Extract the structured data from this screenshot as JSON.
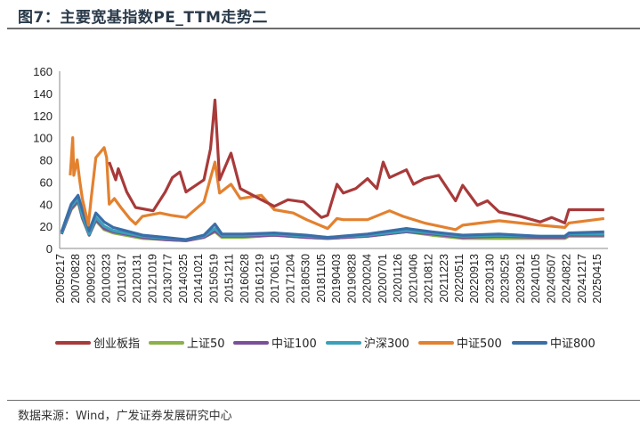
{
  "header": {
    "title": "图7：主要宽基指数PE_TTM走势二"
  },
  "footer": {
    "source": "数据来源：Wind，广发证券发展研究中心"
  },
  "chart_data": {
    "type": "line",
    "title": "",
    "xlabel": "",
    "ylabel": "",
    "ylim": [
      0,
      160
    ],
    "yticks": [
      0,
      20,
      40,
      60,
      80,
      100,
      120,
      140,
      160
    ],
    "grid": false,
    "legend_position": "bottom",
    "x_tick_labels": [
      "20050217",
      "20070828",
      "20090223",
      "20100323",
      "20110317",
      "20120131",
      "20121019",
      "20130717",
      "20140325",
      "20141021",
      "20150519",
      "20151211",
      "20160628",
      "20161219",
      "20170615",
      "20171204",
      "20180530",
      "20181105",
      "20190403",
      "20190828",
      "20200204",
      "20200701",
      "20201126",
      "20210406",
      "20210812",
      "20211223",
      "20220511",
      "20220913",
      "20230130",
      "20230525",
      "20230912",
      "20240105",
      "20240507",
      "20240822",
      "20241217",
      "20250415"
    ],
    "series": [
      {
        "name": "创业板指",
        "color": "#a83a3a",
        "points": [
          [
            "2010-06",
            78
          ],
          [
            "2010-11",
            62
          ],
          [
            "2011-01",
            72
          ],
          [
            "2011-07",
            51
          ],
          [
            "2012-01",
            37
          ],
          [
            "2012-11",
            34
          ],
          [
            "2013-06",
            51
          ],
          [
            "2013-10",
            64
          ],
          [
            "2014-02",
            69
          ],
          [
            "2014-05",
            51
          ],
          [
            "2015-01",
            62
          ],
          [
            "2015-04",
            90
          ],
          [
            "2015-06",
            134
          ],
          [
            "2015-08",
            62
          ],
          [
            "2016-01",
            86
          ],
          [
            "2016-05",
            54
          ],
          [
            "2017-01",
            44
          ],
          [
            "2017-06",
            38
          ],
          [
            "2017-11",
            44
          ],
          [
            "2018-05",
            42
          ],
          [
            "2018-11",
            28
          ],
          [
            "2019-01",
            30
          ],
          [
            "2019-04",
            58
          ],
          [
            "2019-06",
            50
          ],
          [
            "2019-10",
            54
          ],
          [
            "2020-02",
            63
          ],
          [
            "2020-05",
            54
          ],
          [
            "2020-07",
            78
          ],
          [
            "2020-09",
            64
          ],
          [
            "2021-02",
            71
          ],
          [
            "2021-04",
            58
          ],
          [
            "2021-07",
            63
          ],
          [
            "2021-11",
            66
          ],
          [
            "2022-04",
            43
          ],
          [
            "2022-06",
            57
          ],
          [
            "2022-10",
            39
          ],
          [
            "2023-01",
            43
          ],
          [
            "2023-04",
            33
          ],
          [
            "2023-09",
            29
          ],
          [
            "2024-02",
            24
          ],
          [
            "2024-05",
            28
          ],
          [
            "2024-08",
            23
          ],
          [
            "2024-09",
            35
          ],
          [
            "2025-02",
            35
          ],
          [
            "2025-06",
            35
          ]
        ]
      },
      {
        "name": "上证50",
        "color": "#8cb04a",
        "points": [
          [
            "2005-06",
            13
          ],
          [
            "2007-01",
            35
          ],
          [
            "2007-12",
            42
          ],
          [
            "2008-05",
            27
          ],
          [
            "2009-01",
            12
          ],
          [
            "2009-07",
            25
          ],
          [
            "2010-02",
            17
          ],
          [
            "2010-09",
            14
          ],
          [
            "2012-05",
            9
          ],
          [
            "2013-06",
            8
          ],
          [
            "2014-05",
            7
          ],
          [
            "2015-01",
            10
          ],
          [
            "2015-06",
            15
          ],
          [
            "2015-09",
            10
          ],
          [
            "2016-06",
            10
          ],
          [
            "2017-06",
            12
          ],
          [
            "2018-06",
            10
          ],
          [
            "2019-01",
            9
          ],
          [
            "2020-02",
            11
          ],
          [
            "2021-02",
            15
          ],
          [
            "2021-09",
            12
          ],
          [
            "2022-06",
            9
          ],
          [
            "2023-04",
            9
          ],
          [
            "2024-02",
            9
          ],
          [
            "2024-08",
            9
          ],
          [
            "2024-09",
            11
          ],
          [
            "2025-06",
            11
          ]
        ]
      },
      {
        "name": "中证100",
        "color": "#7a4f9a",
        "points": [
          [
            "2005-06",
            13
          ],
          [
            "2007-01",
            36
          ],
          [
            "2007-12",
            43
          ],
          [
            "2008-05",
            28
          ],
          [
            "2009-01",
            12
          ],
          [
            "2009-07",
            26
          ],
          [
            "2010-02",
            18
          ],
          [
            "2010-09",
            15
          ],
          [
            "2012-05",
            10
          ],
          [
            "2013-06",
            8
          ],
          [
            "2014-05",
            7
          ],
          [
            "2015-01",
            10
          ],
          [
            "2015-06",
            16
          ],
          [
            "2015-09",
            11
          ],
          [
            "2016-06",
            11
          ],
          [
            "2017-06",
            12
          ],
          [
            "2018-06",
            10
          ],
          [
            "2019-01",
            9
          ],
          [
            "2020-02",
            11
          ],
          [
            "2021-02",
            15
          ],
          [
            "2021-09",
            13
          ],
          [
            "2022-06",
            10
          ],
          [
            "2023-04",
            11
          ],
          [
            "2024-02",
            10
          ],
          [
            "2024-08",
            10
          ],
          [
            "2024-09",
            12
          ],
          [
            "2025-06",
            12
          ]
        ]
      },
      {
        "name": "沪深300",
        "color": "#3aa0b9",
        "points": [
          [
            "2005-06",
            14
          ],
          [
            "2007-01",
            38
          ],
          [
            "2007-12",
            45
          ],
          [
            "2008-05",
            30
          ],
          [
            "2009-01",
            13
          ],
          [
            "2009-07",
            28
          ],
          [
            "2010-02",
            20
          ],
          [
            "2010-09",
            16
          ],
          [
            "2012-05",
            11
          ],
          [
            "2013-06",
            9
          ],
          [
            "2014-05",
            8
          ],
          [
            "2015-01",
            11
          ],
          [
            "2015-06",
            18
          ],
          [
            "2015-09",
            12
          ],
          [
            "2016-06",
            12
          ],
          [
            "2017-06",
            13
          ],
          [
            "2018-06",
            11
          ],
          [
            "2019-01",
            10
          ],
          [
            "2020-02",
            12
          ],
          [
            "2021-02",
            16
          ],
          [
            "2021-09",
            14
          ],
          [
            "2022-06",
            11
          ],
          [
            "2023-04",
            12
          ],
          [
            "2024-02",
            11
          ],
          [
            "2024-08",
            11
          ],
          [
            "2024-09",
            13
          ],
          [
            "2025-06",
            13
          ]
        ]
      },
      {
        "name": "中证500",
        "color": "#e3812f",
        "points": [
          [
            "2006-11",
            66
          ],
          [
            "2007-04",
            100
          ],
          [
            "2007-06",
            66
          ],
          [
            "2007-11",
            80
          ],
          [
            "2008-02",
            61
          ],
          [
            "2008-05",
            45
          ],
          [
            "2008-12",
            21
          ],
          [
            "2009-03",
            45
          ],
          [
            "2009-07",
            82
          ],
          [
            "2010-02",
            91
          ],
          [
            "2010-04",
            82
          ],
          [
            "2010-06",
            40
          ],
          [
            "2010-10",
            45
          ],
          [
            "2011-03",
            37
          ],
          [
            "2011-09",
            27
          ],
          [
            "2012-01",
            22
          ],
          [
            "2012-05",
            29
          ],
          [
            "2013-03",
            32
          ],
          [
            "2013-09",
            30
          ],
          [
            "2014-05",
            28
          ],
          [
            "2015-01",
            42
          ],
          [
            "2015-06",
            78
          ],
          [
            "2015-08",
            50
          ],
          [
            "2016-01",
            58
          ],
          [
            "2016-05",
            45
          ],
          [
            "2017-01",
            48
          ],
          [
            "2017-06",
            35
          ],
          [
            "2018-01",
            32
          ],
          [
            "2018-06",
            26
          ],
          [
            "2019-01",
            18
          ],
          [
            "2019-04",
            27
          ],
          [
            "2019-06",
            26
          ],
          [
            "2020-02",
            26
          ],
          [
            "2020-09",
            34
          ],
          [
            "2021-01",
            29
          ],
          [
            "2021-07",
            23
          ],
          [
            "2022-04",
            17
          ],
          [
            "2022-06",
            21
          ],
          [
            "2023-04",
            25
          ],
          [
            "2024-02",
            21
          ],
          [
            "2024-08",
            19
          ],
          [
            "2024-09",
            23
          ],
          [
            "2025-06",
            27
          ]
        ]
      },
      {
        "name": "中证800",
        "color": "#3a6ea8",
        "points": [
          [
            "2005-06",
            15
          ],
          [
            "2007-01",
            40
          ],
          [
            "2007-12",
            48
          ],
          [
            "2008-05",
            35
          ],
          [
            "2009-01",
            16
          ],
          [
            "2009-07",
            32
          ],
          [
            "2010-02",
            24
          ],
          [
            "2010-09",
            19
          ],
          [
            "2012-05",
            12
          ],
          [
            "2013-06",
            10
          ],
          [
            "2014-05",
            8
          ],
          [
            "2015-01",
            12
          ],
          [
            "2015-06",
            22
          ],
          [
            "2015-09",
            13
          ],
          [
            "2016-06",
            13
          ],
          [
            "2017-06",
            14
          ],
          [
            "2018-06",
            12
          ],
          [
            "2019-01",
            10
          ],
          [
            "2020-02",
            13
          ],
          [
            "2021-02",
            18
          ],
          [
            "2021-09",
            15
          ],
          [
            "2022-06",
            12
          ],
          [
            "2023-04",
            13
          ],
          [
            "2024-02",
            11
          ],
          [
            "2024-08",
            11
          ],
          [
            "2024-09",
            14
          ],
          [
            "2025-06",
            15
          ]
        ]
      }
    ]
  }
}
